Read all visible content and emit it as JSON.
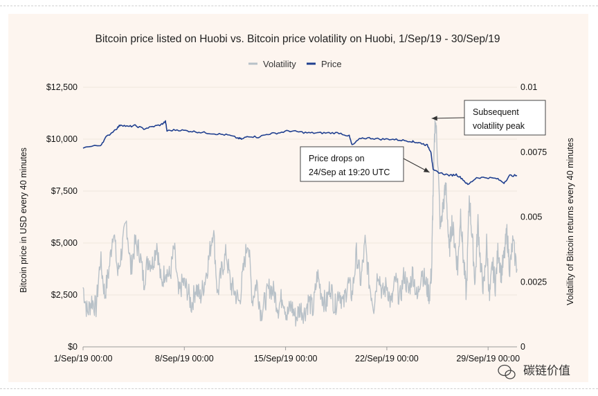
{
  "chart_data": {
    "type": "line",
    "title": "Bitcoin price listed on Huobi vs. Bitcoin price volatility on Huobi, 1/Sep/19 - 30/Sep/19",
    "legend": [
      {
        "name": "Volatility",
        "color": "#b8c1c8"
      },
      {
        "name": "Price",
        "color": "#1f3f8f"
      }
    ],
    "legend_position": "top-center",
    "xlabel": "",
    "ylabel_left": "Bitcoin price in USD every 40 minutes",
    "ylabel_right": "Volatility of Bitcoin returns every 40 minutes",
    "x_range": [
      0,
      30
    ],
    "x_ticks": [
      {
        "value": 0,
        "label": "1/Sep/19 00:00"
      },
      {
        "value": 7,
        "label": "8/Sep/19 00:00"
      },
      {
        "value": 14,
        "label": "15/Sep/19 00:00"
      },
      {
        "value": 21,
        "label": "22/Sep/19 00:00"
      },
      {
        "value": 28,
        "label": "29/Sep/19 00:00"
      }
    ],
    "y_left_range": [
      0,
      12500
    ],
    "y_left_ticks": [
      {
        "value": 0,
        "label": "$0"
      },
      {
        "value": 2500,
        "label": "$2,500"
      },
      {
        "value": 5000,
        "label": "$5,000"
      },
      {
        "value": 7500,
        "label": "$7,500"
      },
      {
        "value": 10000,
        "label": "$10,000"
      },
      {
        "value": 12500,
        "label": "$12,500"
      }
    ],
    "y_right_range": [
      0,
      0.01
    ],
    "y_right_ticks": [
      {
        "value": 0,
        "label": "0"
      },
      {
        "value": 0.0025,
        "label": "0.0025"
      },
      {
        "value": 0.005,
        "label": "0.005"
      },
      {
        "value": 0.0075,
        "label": "0.0075"
      },
      {
        "value": 0.01,
        "label": "0.01"
      }
    ],
    "series": [
      {
        "name": "Price",
        "axis": "left",
        "x": [
          0,
          1.2,
          1.6,
          2.3,
          2.6,
          3.1,
          3.6,
          4.2,
          4.8,
          5.4,
          5.7,
          5.8,
          6.5,
          7.2,
          7.9,
          8.6,
          9.3,
          10.0,
          10.7,
          11.0,
          11.4,
          12.1,
          12.8,
          13.5,
          14.2,
          14.9,
          15.6,
          16.3,
          17.0,
          17.7,
          18.4,
          18.6,
          19.2,
          19.9,
          20.6,
          21.3,
          22.0,
          22.7,
          23.0,
          23.4,
          23.8,
          24.05,
          24.2,
          24.8,
          25.4,
          25.8,
          26.2,
          26.6,
          27.2,
          27.9,
          28.6,
          29.1,
          29.5,
          30.0
        ],
        "values": [
          9600,
          9700,
          10100,
          10500,
          10700,
          10600,
          10650,
          10500,
          10600,
          10700,
          10850,
          10400,
          10450,
          10400,
          10350,
          10300,
          10250,
          10200,
          10050,
          10000,
          10150,
          10100,
          10250,
          10300,
          10400,
          10350,
          10300,
          10300,
          10300,
          10300,
          10150,
          9700,
          10050,
          10050,
          10000,
          10000,
          9950,
          9900,
          9850,
          9800,
          9700,
          9400,
          8500,
          8350,
          8250,
          8300,
          8100,
          7800,
          8150,
          8150,
          8100,
          7900,
          8250,
          8250
        ]
      },
      {
        "name": "Volatility",
        "axis": "right",
        "x": [
          0,
          0.3,
          0.6,
          0.9,
          1.2,
          1.5,
          1.8,
          2.1,
          2.4,
          2.7,
          3.0,
          3.3,
          3.6,
          3.9,
          4.2,
          4.5,
          4.8,
          5.1,
          5.4,
          5.7,
          6.0,
          6.3,
          6.6,
          6.9,
          7.2,
          7.5,
          7.8,
          8.1,
          8.4,
          8.7,
          9.0,
          9.3,
          9.6,
          9.9,
          10.2,
          10.5,
          10.8,
          11.1,
          11.4,
          11.7,
          12.0,
          12.3,
          12.6,
          12.9,
          13.2,
          13.5,
          13.8,
          14.1,
          14.4,
          14.7,
          15.0,
          15.3,
          15.6,
          15.9,
          16.2,
          16.5,
          16.8,
          17.1,
          17.4,
          17.7,
          18.0,
          18.3,
          18.6,
          18.9,
          19.2,
          19.5,
          19.8,
          20.1,
          20.4,
          20.7,
          21.0,
          21.3,
          21.6,
          21.9,
          22.2,
          22.5,
          22.8,
          23.1,
          23.4,
          23.7,
          23.95,
          24.1,
          24.2,
          24.35,
          24.5,
          24.7,
          24.9,
          25.1,
          25.3,
          25.5,
          25.7,
          25.9,
          26.1,
          26.3,
          26.5,
          26.7,
          26.9,
          27.1,
          27.3,
          27.5,
          27.7,
          27.9,
          28.1,
          28.3,
          28.5,
          28.7,
          28.9,
          29.1,
          29.3,
          29.5,
          29.7,
          30.0
        ],
        "values": [
          0.0023,
          0.0013,
          0.0018,
          0.0015,
          0.0034,
          0.002,
          0.003,
          0.0046,
          0.0028,
          0.0038,
          0.0048,
          0.003,
          0.004,
          0.0037,
          0.0025,
          0.0034,
          0.0032,
          0.004,
          0.0024,
          0.003,
          0.0027,
          0.0038,
          0.002,
          0.0025,
          0.0022,
          0.0016,
          0.0023,
          0.0019,
          0.0025,
          0.0034,
          0.0046,
          0.002,
          0.003,
          0.0036,
          0.0024,
          0.0021,
          0.0017,
          0.003,
          0.0042,
          0.0018,
          0.0025,
          0.0013,
          0.0018,
          0.0023,
          0.0021,
          0.0015,
          0.002,
          0.0012,
          0.0016,
          0.0011,
          0.0015,
          0.0013,
          0.0018,
          0.0014,
          0.0028,
          0.002,
          0.0016,
          0.0024,
          0.0015,
          0.0022,
          0.0016,
          0.0025,
          0.002,
          0.0036,
          0.0025,
          0.004,
          0.0024,
          0.0016,
          0.003,
          0.002,
          0.0024,
          0.0016,
          0.0026,
          0.0018,
          0.0028,
          0.0021,
          0.0029,
          0.0018,
          0.003,
          0.0024,
          0.002,
          0.003,
          0.006,
          0.0089,
          0.0075,
          0.0045,
          0.0055,
          0.0062,
          0.0036,
          0.0048,
          0.004,
          0.003,
          0.0052,
          0.0033,
          0.002,
          0.0058,
          0.0042,
          0.0025,
          0.0048,
          0.003,
          0.0022,
          0.004,
          0.0018,
          0.0032,
          0.0024,
          0.0038,
          0.0028,
          0.0034,
          0.0044,
          0.003,
          0.004,
          0.003
        ]
      }
    ],
    "annotations": [
      {
        "text": [
          "Subsequent",
          "volatility peak"
        ],
        "points_to": {
          "x": 24.1,
          "axis": "right",
          "y": 0.0088
        }
      },
      {
        "text": [
          "Price drops on",
          "24/Sep at 19:20 UTC"
        ],
        "points_to": {
          "x": 23.95,
          "axis": "left",
          "y": 8400
        }
      }
    ]
  },
  "watermark": {
    "text": "碳链价值",
    "icon": "wechat-icon"
  }
}
